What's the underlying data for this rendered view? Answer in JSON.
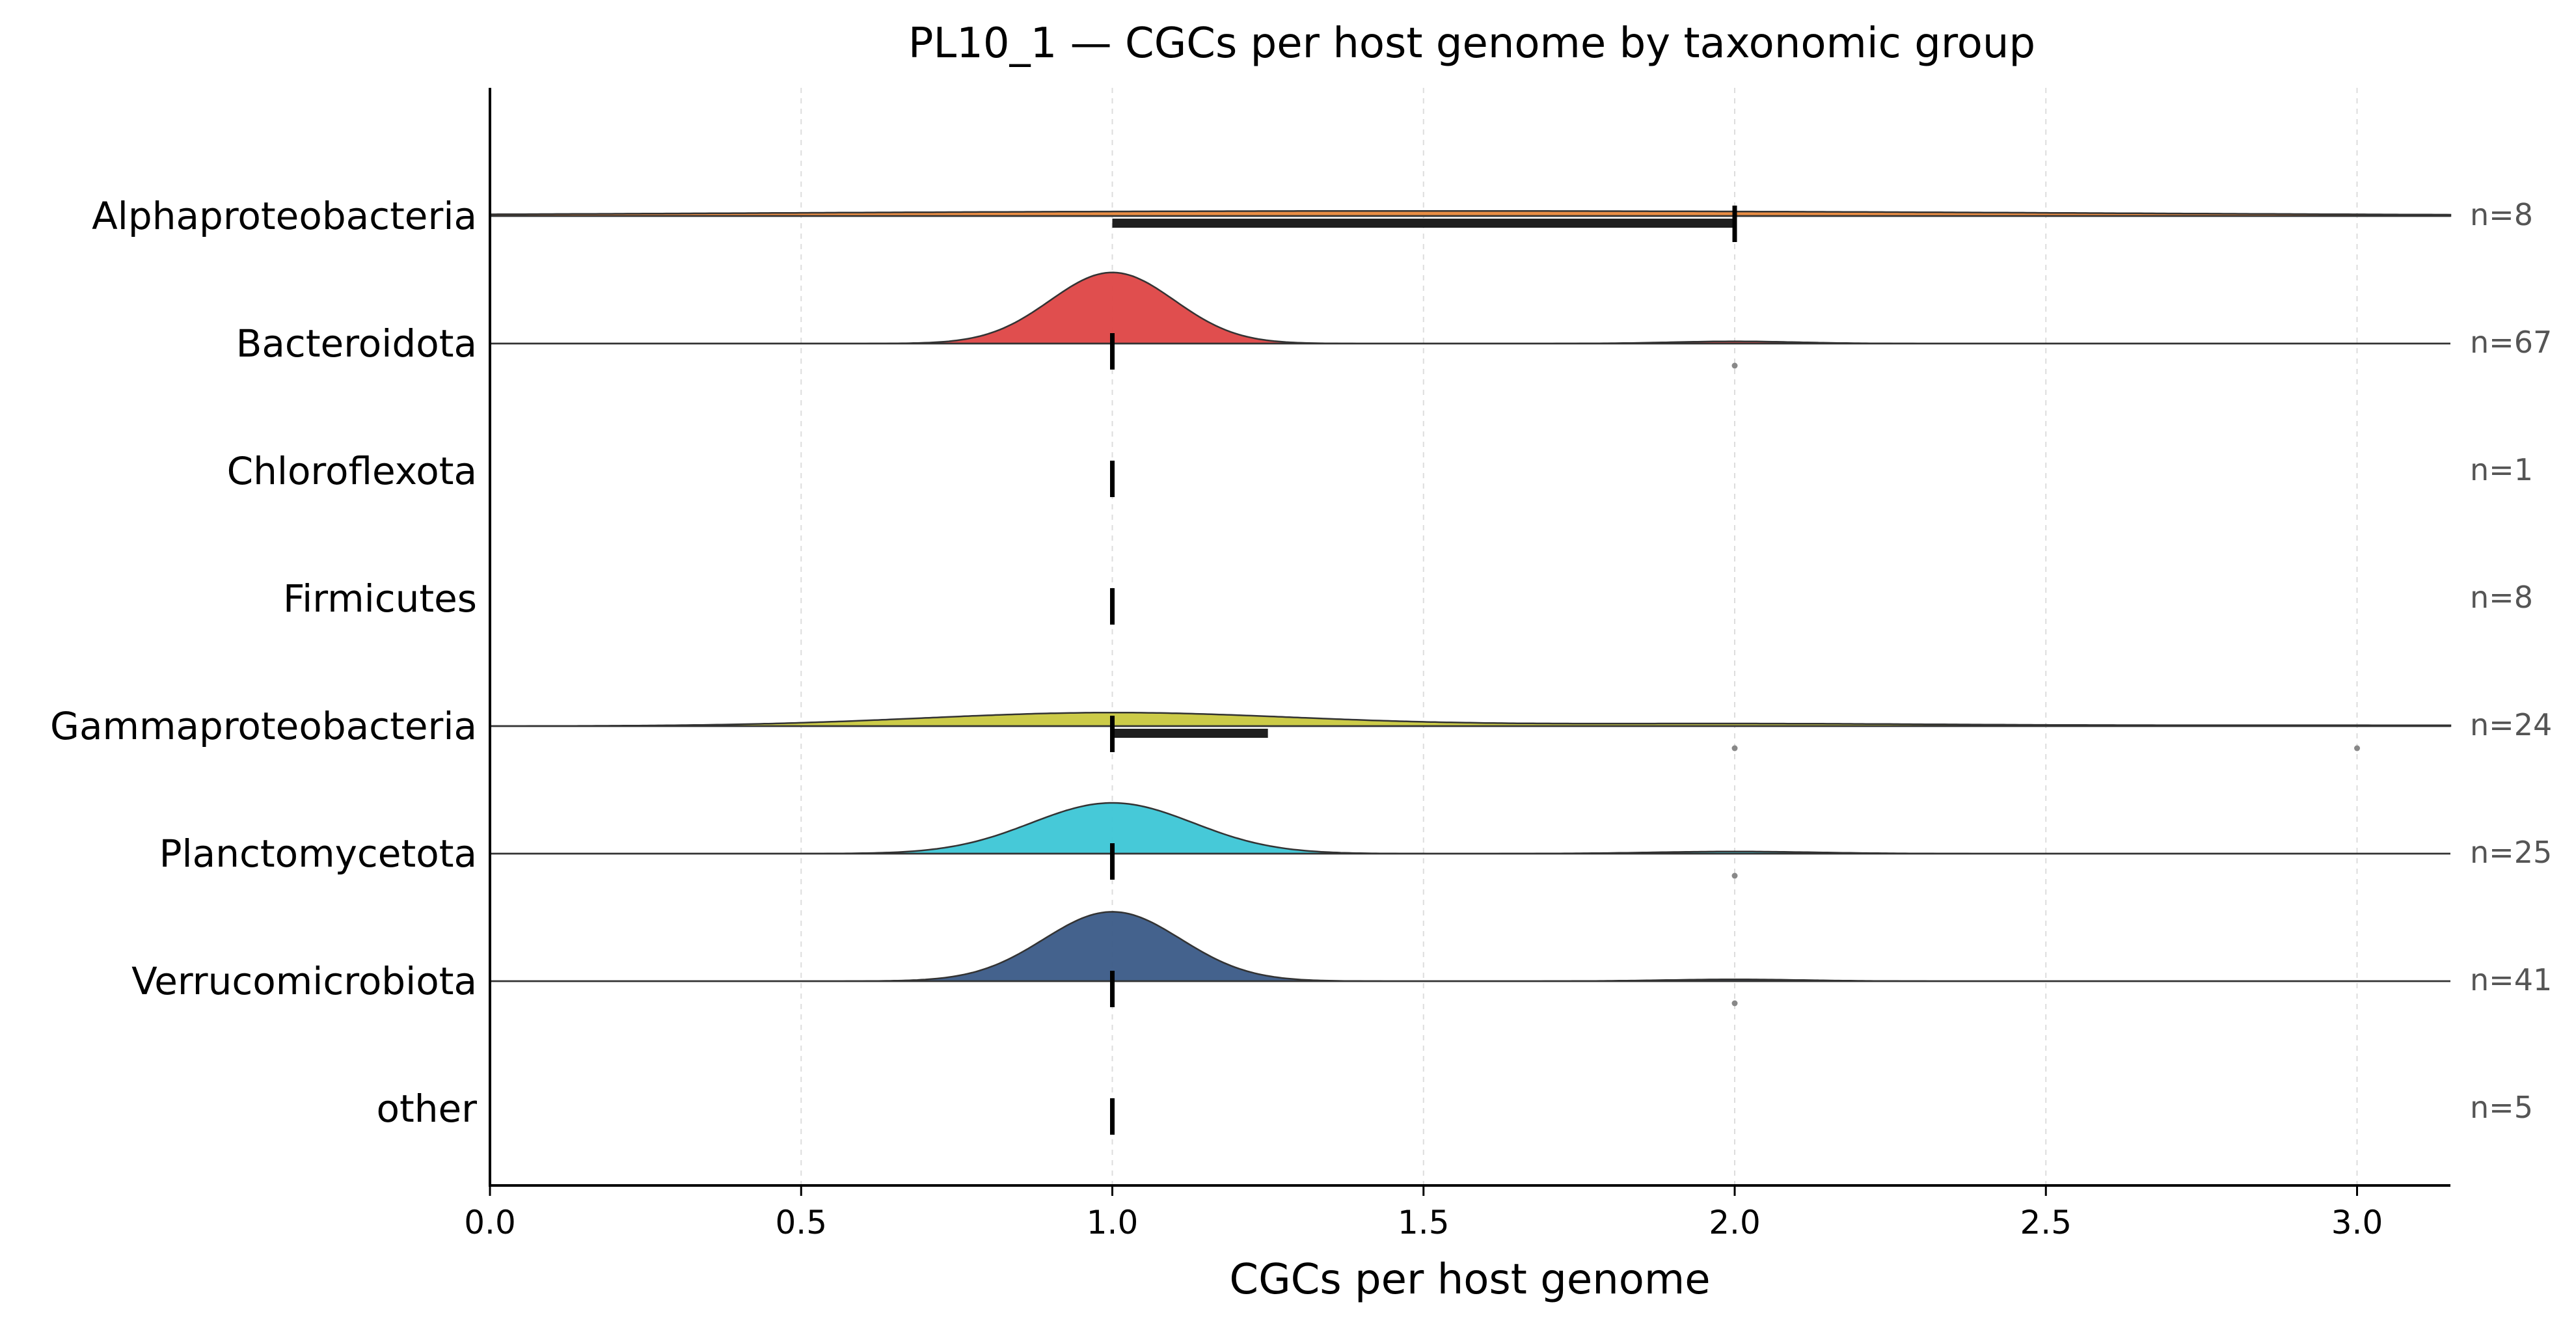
{
  "chart_data": {
    "type": "ridgeline",
    "title": "PL10_1 — CGCs per host genome by taxonomic group",
    "xlabel": "CGCs per host genome",
    "ylabel": "",
    "xlim": [
      0.0,
      3.15
    ],
    "xticks": [
      0.0,
      0.5,
      1.0,
      1.5,
      2.0,
      2.5,
      3.0
    ],
    "x_tick_labels": [
      "0.0",
      "0.5",
      "1.0",
      "1.5",
      "2.0",
      "2.5",
      "3.0"
    ],
    "grid": "x-dashed",
    "categories": [
      "Alphaproteobacteria",
      "Bacteroidota",
      "Chloroflexota",
      "Firmicutes",
      "Gammaproteobacteria",
      "Planctomycetota",
      "Verrucomicrobiota",
      "other"
    ],
    "series": [
      {
        "category": "Alphaproteobacteria",
        "n_label": "n=8",
        "color": "#e8873a",
        "median": 2.0,
        "iqr": [
          1.0,
          2.0
        ],
        "outliers": [],
        "density": [
          {
            "mean": 1.0,
            "sd": 0.85,
            "weight": 0.5
          },
          {
            "mean": 2.0,
            "sd": 0.85,
            "weight": 0.5
          }
        ],
        "peak_height": 0.03
      },
      {
        "category": "Bacteroidota",
        "n_label": "n=67",
        "color": "#de4545",
        "median": 1.0,
        "iqr": [
          1.0,
          1.0
        ],
        "outliers": [
          2.0
        ],
        "density": [
          {
            "mean": 1.0,
            "sd": 0.1,
            "weight": 0.97
          },
          {
            "mean": 2.0,
            "sd": 0.1,
            "weight": 0.03
          }
        ],
        "peak_height": 0.42
      },
      {
        "category": "Chloroflexota",
        "n_label": "n=1",
        "color": "#7f7f7f",
        "median": 1.0,
        "iqr": [
          1.0,
          1.0
        ],
        "outliers": [],
        "density": [],
        "peak_height": 0
      },
      {
        "category": "Firmicutes",
        "n_label": "n=8",
        "color": "#7f7f7f",
        "median": 1.0,
        "iqr": [
          1.0,
          1.0
        ],
        "outliers": [],
        "density": [],
        "peak_height": 0
      },
      {
        "category": "Gammaproteobacteria",
        "n_label": "n=24",
        "color": "#c9c83e",
        "median": 1.0,
        "iqr": [
          1.0,
          1.25
        ],
        "outliers": [
          2.0,
          3.0
        ],
        "density": [
          {
            "mean": 1.0,
            "sd": 0.3,
            "weight": 0.8
          },
          {
            "mean": 2.0,
            "sd": 0.35,
            "weight": 0.15
          },
          {
            "mean": 3.0,
            "sd": 0.35,
            "weight": 0.05
          }
        ],
        "peak_height": 0.08
      },
      {
        "category": "Planctomycetota",
        "n_label": "n=25",
        "color": "#3cc6d6",
        "median": 1.0,
        "iqr": [
          1.0,
          1.0
        ],
        "outliers": [
          2.0
        ],
        "density": [
          {
            "mean": 1.0,
            "sd": 0.13,
            "weight": 0.96
          },
          {
            "mean": 2.0,
            "sd": 0.13,
            "weight": 0.04
          }
        ],
        "peak_height": 0.3
      },
      {
        "category": "Verrucomicrobiota",
        "n_label": "n=41",
        "color": "#3a5a87",
        "median": 1.0,
        "iqr": [
          1.0,
          1.0
        ],
        "outliers": [
          2.0
        ],
        "density": [
          {
            "mean": 1.0,
            "sd": 0.11,
            "weight": 0.975
          },
          {
            "mean": 2.0,
            "sd": 0.11,
            "weight": 0.025
          }
        ],
        "peak_height": 0.41
      },
      {
        "category": "other",
        "n_label": "n=5",
        "color": "#7f7f7f",
        "median": 1.0,
        "iqr": [
          1.0,
          1.0
        ],
        "outliers": [],
        "density": [],
        "peak_height": 0
      }
    ]
  }
}
